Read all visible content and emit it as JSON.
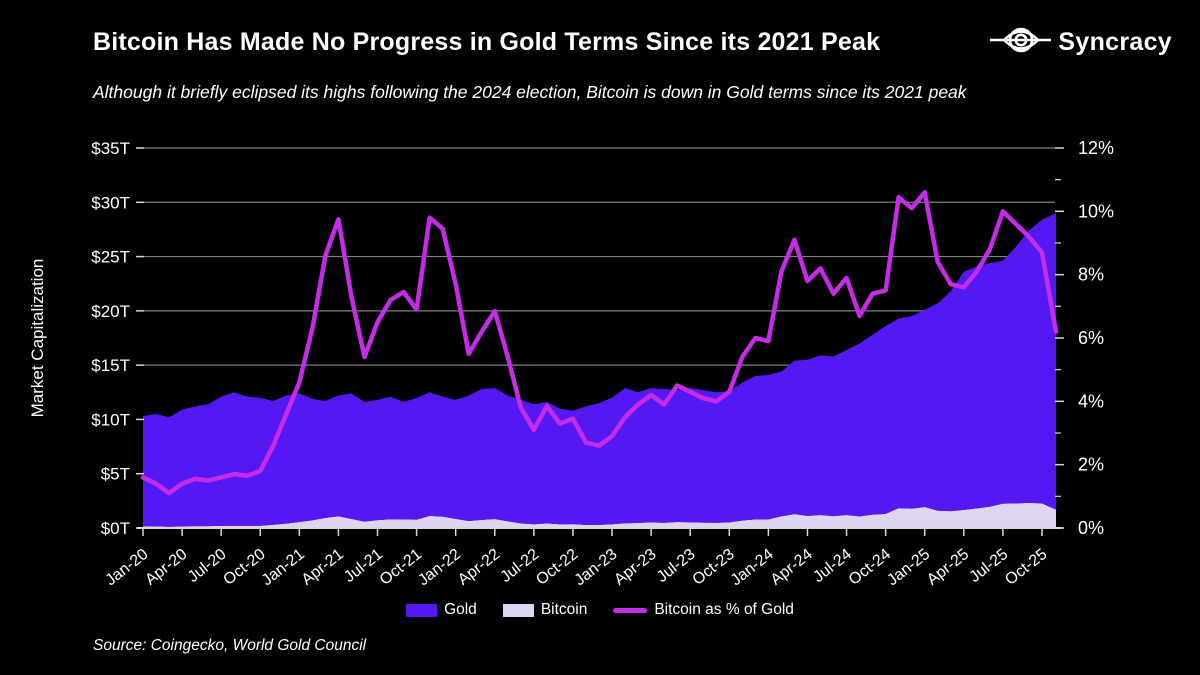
{
  "header": {
    "title": "Bitcoin Has Made No Progress in Gold Terms Since its 2021 Peak",
    "subtitle": "Although it briefly eclipsed its highs following the 2024 election, Bitcoin is down in Gold terms since its 2021 peak"
  },
  "logo": {
    "brand": "Syncracy",
    "icon": "syncracy-eye-icon"
  },
  "source": {
    "text": "Source: Coingecko, World Gold Council"
  },
  "legend": {
    "items": [
      {
        "label": "Gold",
        "type": "area",
        "color": "#5418f2"
      },
      {
        "label": "Bitcoin",
        "type": "area",
        "color": "#ddd5f2"
      },
      {
        "label": "Bitcoin as % of Gold",
        "type": "line",
        "color": "#c62ce8"
      }
    ]
  },
  "colors": {
    "background": "#000000",
    "gold_area": "#5418f2",
    "bitcoin_area": "#ddd5f2",
    "pct_line": "#c62ce8",
    "grid": "#8f8f8f",
    "axis": "#d8d8d8",
    "text": "#ffffff"
  },
  "chart_data": {
    "type": "area",
    "stacked": true,
    "title": "Bitcoin Has Made No Progress in Gold Terms Since its 2021 Peak",
    "x": [
      "Jan-20",
      "Feb-20",
      "Mar-20",
      "Apr-20",
      "May-20",
      "Jun-20",
      "Jul-20",
      "Aug-20",
      "Sep-20",
      "Oct-20",
      "Nov-20",
      "Dec-20",
      "Jan-21",
      "Feb-21",
      "Mar-21",
      "Apr-21",
      "May-21",
      "Jun-21",
      "Jul-21",
      "Aug-21",
      "Sep-21",
      "Oct-21",
      "Nov-21",
      "Dec-21",
      "Jan-22",
      "Feb-22",
      "Mar-22",
      "Apr-22",
      "May-22",
      "Jun-22",
      "Jul-22",
      "Aug-22",
      "Sep-22",
      "Oct-22",
      "Nov-22",
      "Dec-22",
      "Jan-23",
      "Feb-23",
      "Mar-23",
      "Apr-23",
      "May-23",
      "Jun-23",
      "Jul-23",
      "Aug-23",
      "Sep-23",
      "Oct-23",
      "Nov-23",
      "Dec-23",
      "Jan-24",
      "Feb-24",
      "Mar-24",
      "Apr-24",
      "May-24",
      "Jun-24",
      "Jul-24",
      "Aug-24",
      "Sep-24",
      "Oct-24",
      "Nov-24",
      "Dec-24",
      "Jan-25",
      "Feb-25",
      "Mar-25",
      "Apr-25",
      "May-25",
      "Jun-25",
      "Jul-25",
      "Aug-25",
      "Sep-25",
      "Oct-25",
      "Nov-25"
    ],
    "x_tick_every": 3,
    "series": [
      {
        "name": "Bitcoin",
        "axis": "left",
        "unit": "$T",
        "values": [
          0.16,
          0.15,
          0.11,
          0.15,
          0.17,
          0.17,
          0.19,
          0.21,
          0.2,
          0.21,
          0.3,
          0.42,
          0.55,
          0.71,
          0.93,
          1.08,
          0.84,
          0.59,
          0.72,
          0.81,
          0.8,
          0.77,
          1.12,
          1.05,
          0.84,
          0.64,
          0.75,
          0.83,
          0.62,
          0.43,
          0.34,
          0.43,
          0.35,
          0.36,
          0.29,
          0.29,
          0.34,
          0.44,
          0.47,
          0.52,
          0.48,
          0.55,
          0.53,
          0.5,
          0.48,
          0.52,
          0.69,
          0.79,
          0.79,
          1.08,
          1.28,
          1.12,
          1.2,
          1.09,
          1.2,
          1.07,
          1.23,
          1.3,
          1.83,
          1.79,
          1.93,
          1.6,
          1.56,
          1.67,
          1.81,
          1.97,
          2.24,
          2.27,
          2.31,
          2.27,
          1.69
        ]
      },
      {
        "name": "Gold",
        "axis": "left",
        "unit": "$T",
        "values": [
          10.14,
          10.36,
          10.09,
          10.75,
          11.03,
          11.23,
          11.91,
          12.29,
          11.9,
          11.79,
          11.4,
          11.78,
          11.85,
          11.19,
          10.77,
          11.12,
          11.56,
          11.01,
          11.08,
          11.29,
          10.8,
          11.22,
          11.38,
          11.06,
          10.96,
          11.56,
          12.05,
          12.07,
          11.58,
          11.37,
          11.06,
          11.17,
          10.65,
          10.44,
          10.91,
          11.21,
          11.66,
          12.46,
          12.03,
          12.38,
          12.32,
          12.15,
          12.37,
          12.2,
          12.02,
          12.08,
          12.71,
          13.21,
          13.31,
          13.32,
          14.12,
          14.38,
          14.7,
          14.71,
          15.2,
          15.93,
          16.57,
          17.3,
          17.47,
          17.71,
          18.17,
          19.1,
          20.24,
          21.93,
          22.29,
          22.43,
          22.36,
          23.63,
          25.09,
          26.13,
          27.31
        ]
      },
      {
        "name": "Bitcoin as % of Gold",
        "axis": "right",
        "unit": "%",
        "values": [
          1.6,
          1.4,
          1.1,
          1.4,
          1.55,
          1.5,
          1.6,
          1.7,
          1.65,
          1.8,
          2.6,
          3.6,
          4.6,
          6.3,
          8.6,
          9.75,
          7.3,
          5.4,
          6.5,
          7.2,
          7.45,
          6.9,
          9.8,
          9.45,
          7.7,
          5.5,
          6.2,
          6.85,
          5.4,
          3.8,
          3.1,
          3.85,
          3.3,
          3.45,
          2.7,
          2.6,
          2.9,
          3.5,
          3.9,
          4.2,
          3.9,
          4.5,
          4.3,
          4.1,
          4.0,
          4.3,
          5.4,
          6.0,
          5.9,
          8.1,
          9.1,
          7.8,
          8.2,
          7.4,
          7.9,
          6.7,
          7.4,
          7.5,
          10.45,
          10.1,
          10.6,
          8.4,
          7.7,
          7.6,
          8.1,
          8.8,
          10.0,
          9.6,
          9.2,
          8.7,
          6.2
        ]
      }
    ],
    "y_left": {
      "label": "Market Capitalization",
      "min": 0,
      "max": 35,
      "tick_step": 5,
      "tick_labels": [
        "$0T",
        "$5T",
        "$10T",
        "$15T",
        "$20T",
        "$25T",
        "$30T",
        "$35T"
      ]
    },
    "y_right": {
      "label": "",
      "min": 0,
      "max": 12,
      "tick_step": 2,
      "minor_tick_step": 1,
      "tick_labels": [
        "0%",
        "2%",
        "4%",
        "6%",
        "8%",
        "10%",
        "12%"
      ]
    },
    "grid": "horizontal",
    "legend_position": "bottom"
  }
}
